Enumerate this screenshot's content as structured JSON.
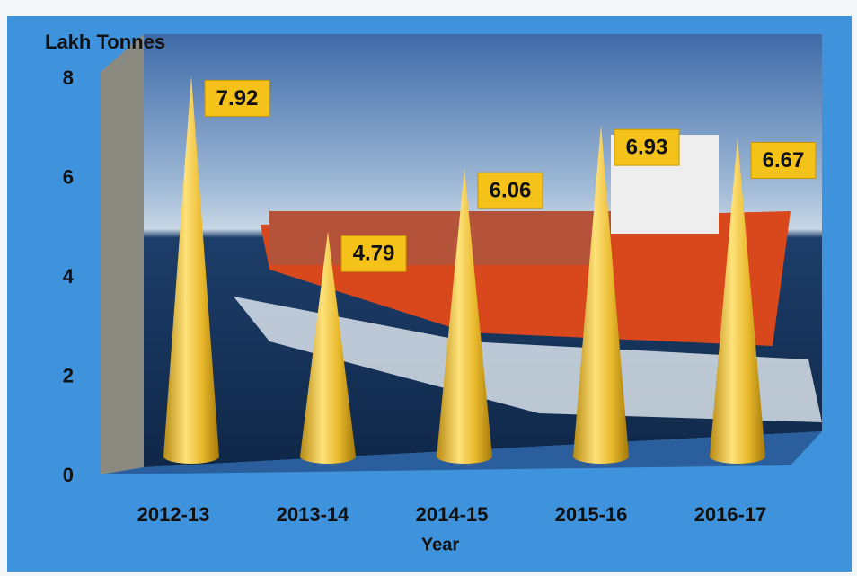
{
  "chart_data": {
    "type": "cone",
    "y_label": "Lakh Tonnes",
    "x_label": "Year",
    "categories": [
      "2012-13",
      "2013-14",
      "2014-15",
      "2015-16",
      "2016-17"
    ],
    "values": [
      7.92,
      4.79,
      6.06,
      6.93,
      6.67
    ],
    "color": "#e8b82a",
    "ylim": [
      0,
      8
    ],
    "yticks": [
      0,
      2,
      4,
      6,
      8
    ]
  }
}
